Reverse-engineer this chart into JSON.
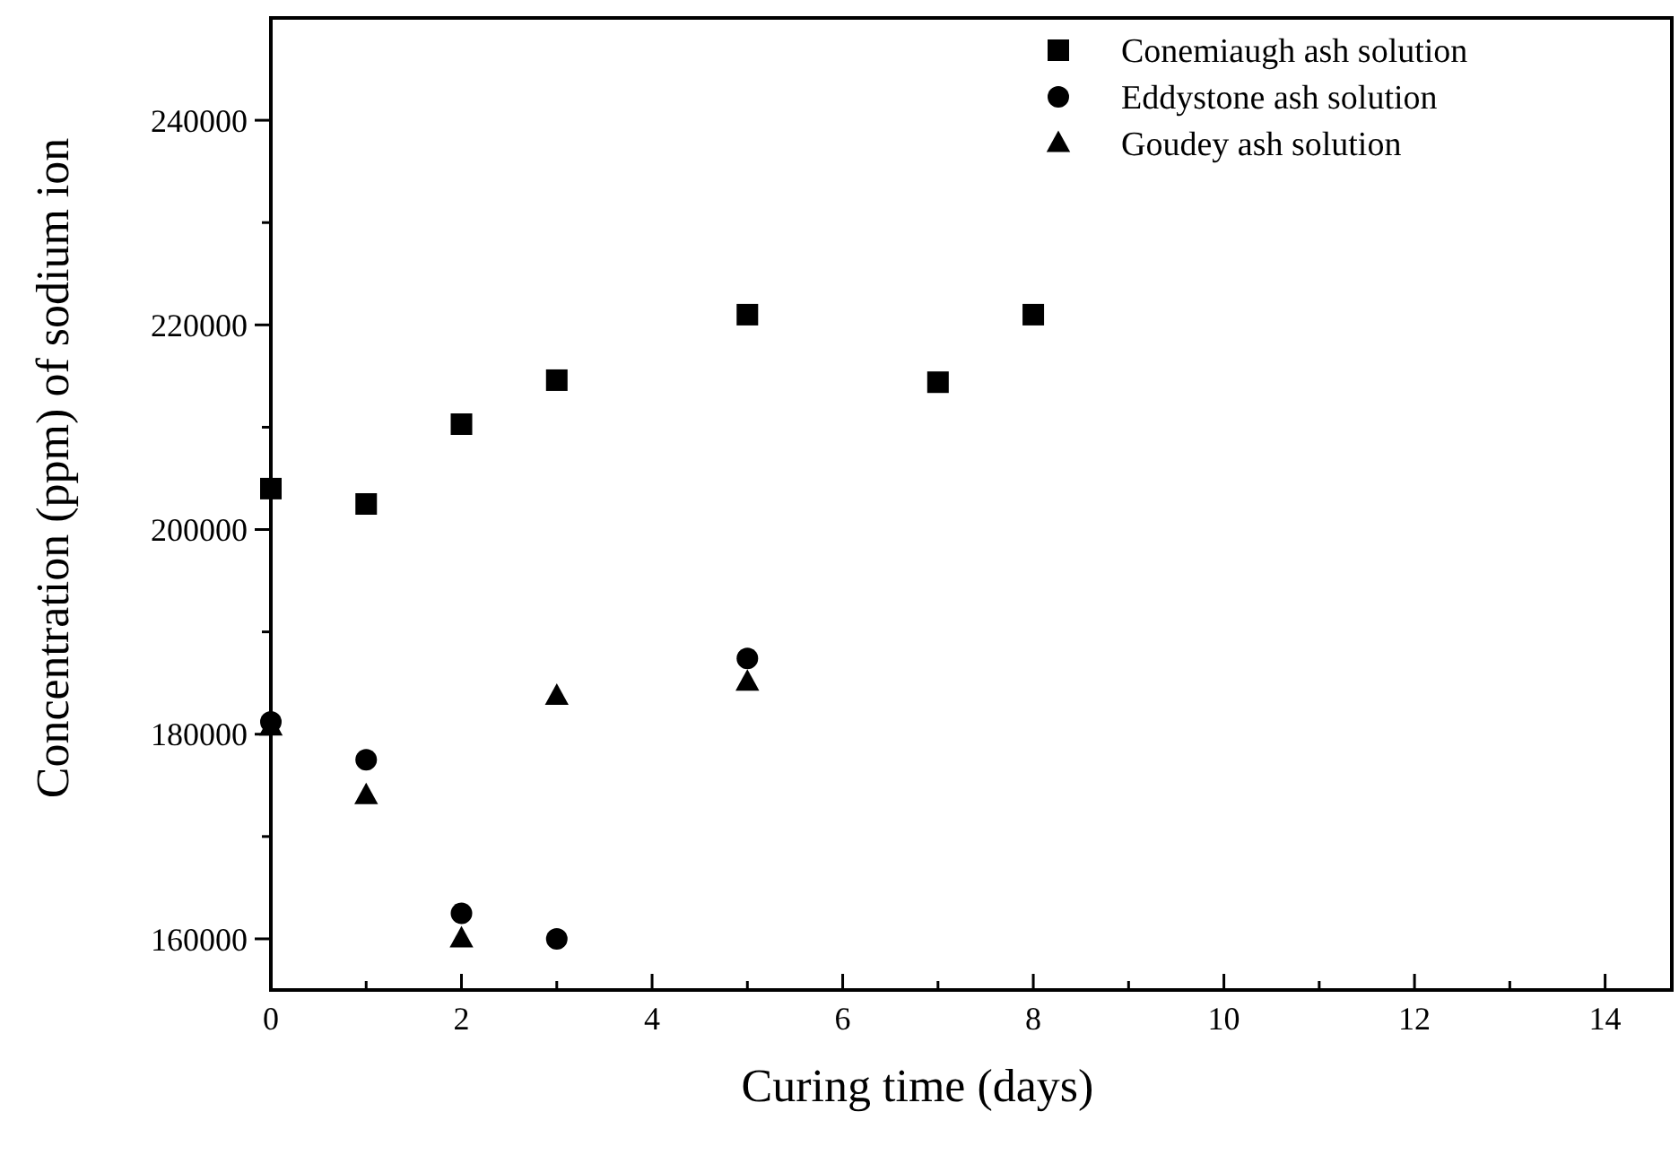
{
  "chart_data": {
    "type": "scatter",
    "xlabel": "Curing time (days)",
    "ylabel": "Concentration (ppm) of sodium ion",
    "xlim": [
      0,
      14.7
    ],
    "ylim": [
      155000,
      250000
    ],
    "xticks": [
      0,
      {
        "value": 1,
        "label": null
      },
      2,
      {
        "value": 3,
        "label": null
      },
      4,
      {
        "value": 5,
        "label": null
      },
      6,
      {
        "value": 7,
        "label": null
      },
      8,
      {
        "value": 9,
        "label": null
      },
      10,
      {
        "value": 11,
        "label": null
      },
      12,
      {
        "value": 13,
        "label": null
      },
      14
    ],
    "yticks": [
      160000,
      {
        "value": 170000,
        "label": null
      },
      180000,
      {
        "value": 190000,
        "label": null
      },
      200000,
      {
        "value": 210000,
        "label": null
      },
      220000,
      {
        "value": 230000,
        "label": null
      },
      240000
    ],
    "legend": "top right",
    "grid": false,
    "series": [
      {
        "name": "Conemiaugh ash solution",
        "color": "#000000",
        "marker": "square",
        "x": [
          0,
          1,
          2,
          3,
          5,
          7,
          8
        ],
        "values": [
          204000,
          202500,
          210300,
          214600,
          221000,
          214400,
          221000
        ]
      },
      {
        "name": "Eddystone ash solution",
        "color": "#000000",
        "marker": "circle",
        "x": [
          0,
          1,
          2,
          3,
          5
        ],
        "values": [
          181200,
          177500,
          162500,
          160000,
          187400
        ]
      },
      {
        "name": "Goudey ash solution",
        "color": "#000000",
        "marker": "triangle",
        "x": [
          0,
          1,
          2,
          3,
          5
        ],
        "values": [
          180700,
          174000,
          160000,
          183700,
          185100
        ]
      }
    ]
  }
}
